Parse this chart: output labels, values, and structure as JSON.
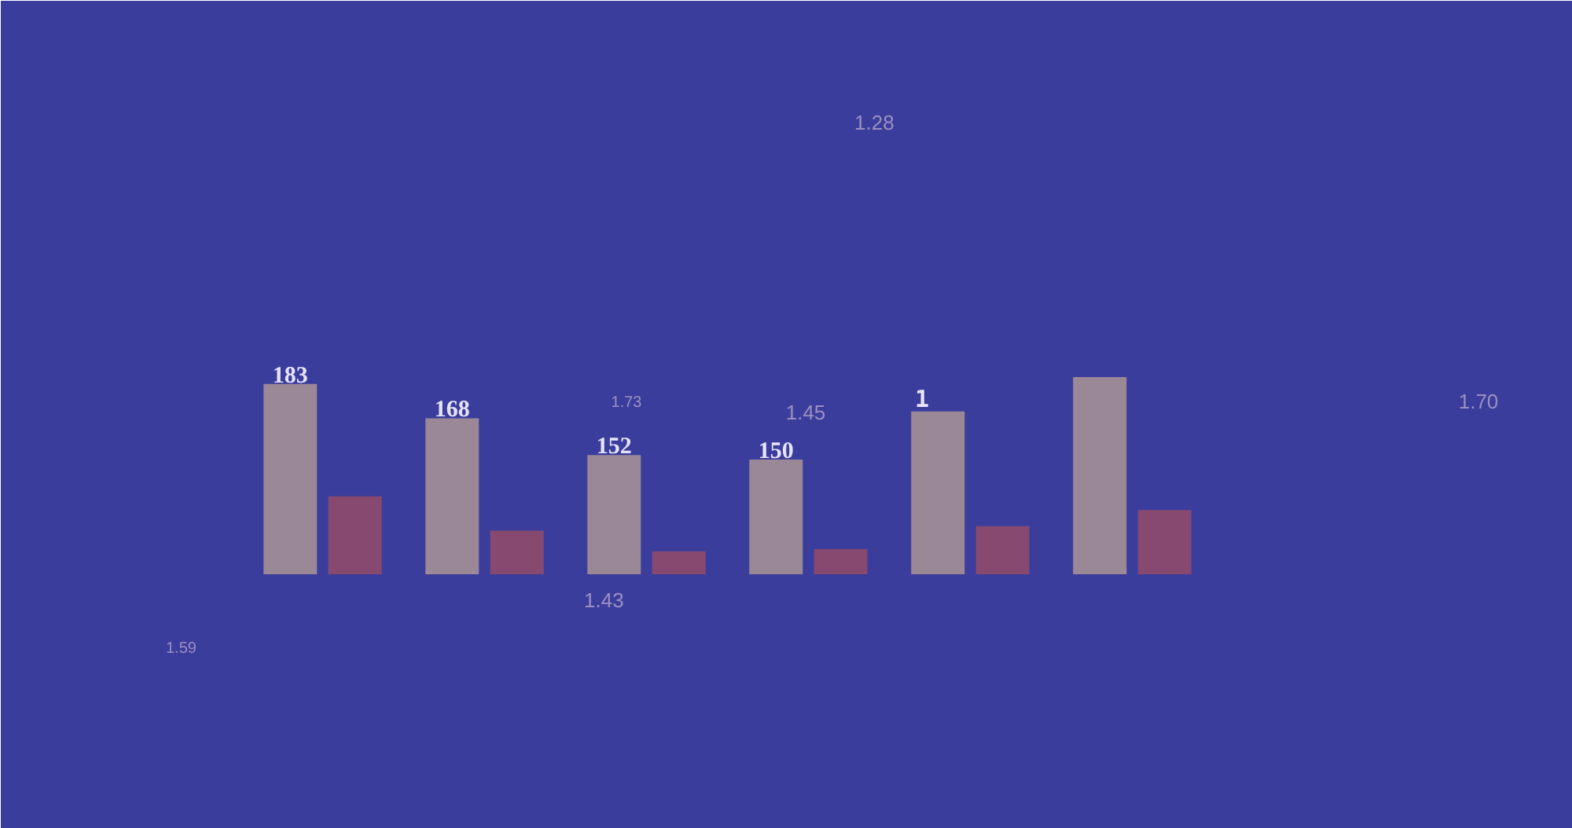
{
  "chart_data": {
    "type": "bar",
    "categories": [
      null,
      null,
      null,
      null,
      null,
      null
    ],
    "series": [
      {
        "color": "#a08c96",
        "values": [
          183,
          168,
          152,
          150,
          171,
          186
        ],
        "value_labels": [
          "183",
          "168",
          "152",
          "150",
          null,
          null
        ]
      },
      {
        "color": "#8c4a6e",
        "values": [
          134,
          119,
          110,
          111,
          121,
          128
        ]
      }
    ],
    "ylim": [
      100,
      287
    ],
    "annotations": [
      "1.28",
      "1.73",
      "1.45",
      "1.70",
      "1.43",
      "1.59",
      "1"
    ]
  }
}
